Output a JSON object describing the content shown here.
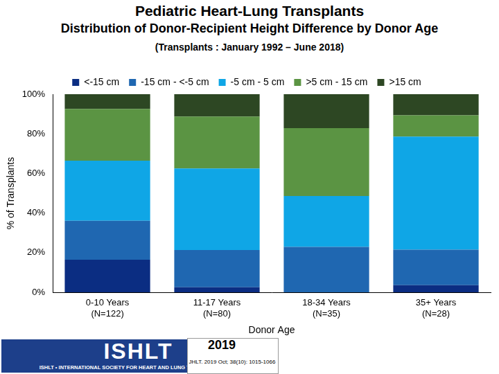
{
  "chart_data": {
    "type": "bar",
    "stacked": true,
    "title": "Pediatric Heart-Lung Transplants",
    "subtitle": [
      "Distribution of Donor-Recipient Height Difference by Donor Age",
      "(Transplants : January 1992 – June 2018)"
    ],
    "x_label": "Donor Age",
    "y_label": "% of Transplants",
    "categories": [
      "0-10 Years\n(N=122)",
      "11-17 Years\n(N=80)",
      "18-34 Years\n(N=35)",
      "35+ Years\n(N=28)"
    ],
    "series": [
      {
        "name": "<-15 cm",
        "color": "#0b2d82",
        "values": [
          16.4,
          2.5,
          0,
          3.6
        ]
      },
      {
        "name": "-15 cm - <-5 cm",
        "color": "#1f67b1",
        "values": [
          19.7,
          18.8,
          22.9,
          17.9
        ]
      },
      {
        "name": "-5 cm - 5 cm",
        "color": "#0fa6e6",
        "values": [
          30.3,
          41.2,
          25.7,
          57.1
        ]
      },
      {
        "name": ">5 cm - 15 cm",
        "color": "#5b9443",
        "values": [
          26.2,
          26.2,
          34.3,
          10.7
        ]
      },
      {
        "name": ">15 cm",
        "color": "#2d4723",
        "values": [
          7.4,
          11.3,
          17.1,
          10.7
        ]
      }
    ],
    "ylim": [
      0,
      100
    ],
    "yticks": [
      {
        "value": 0,
        "label": "0%"
      },
      {
        "value": 20,
        "label": "20%"
      },
      {
        "value": 40,
        "label": "40%"
      },
      {
        "value": 60,
        "label": "60%"
      },
      {
        "value": 80,
        "label": "80%"
      },
      {
        "value": 100,
        "label": "100%"
      }
    ],
    "grid": false,
    "legend": "top",
    "data_labels": false,
    "annotations": [
      "ISHLT",
      "ISHLT • INTERNATIONAL SOCIETY FOR HEART AND LUNG TRANSPLANTATION",
      "2019",
      "JHLT. 2019 Oct; 38(10): 1015-1066"
    ]
  }
}
